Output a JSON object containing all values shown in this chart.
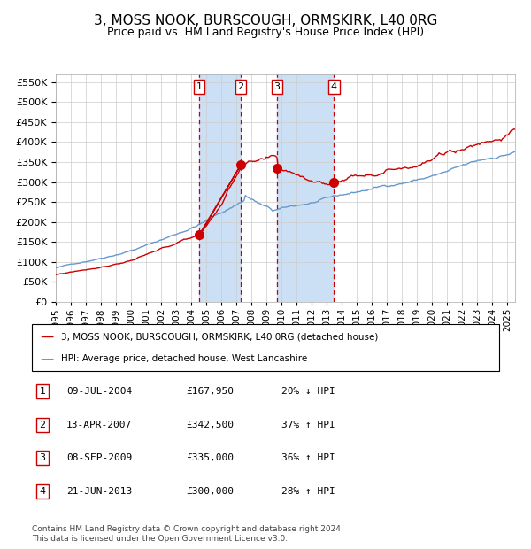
{
  "title": "3, MOSS NOOK, BURSCOUGH, ORMSKIRK, L40 0RG",
  "subtitle": "Price paid vs. HM Land Registry's House Price Index (HPI)",
  "title_fontsize": 11,
  "subtitle_fontsize": 9,
  "legend_line1": "3, MOSS NOOK, BURSCOUGH, ORMSKIRK, L40 0RG (detached house)",
  "legend_line2": "HPI: Average price, detached house, West Lancashire",
  "footer": "Contains HM Land Registry data © Crown copyright and database right 2024.\nThis data is licensed under the Open Government Licence v3.0.",
  "transactions": [
    {
      "num": 1,
      "date": "09-JUL-2004",
      "price": 167950,
      "hpi_rel": "20% ↓ HPI"
    },
    {
      "num": 2,
      "date": "13-APR-2007",
      "price": 342500,
      "hpi_rel": "37% ↑ HPI"
    },
    {
      "num": 3,
      "date": "08-SEP-2009",
      "price": 335000,
      "hpi_rel": "36% ↑ HPI"
    },
    {
      "num": 4,
      "date": "21-JUN-2013",
      "price": 300000,
      "hpi_rel": "28% ↑ HPI"
    }
  ],
  "transaction_dates_decimal": [
    2004.52,
    2007.28,
    2009.69,
    2013.47
  ],
  "transaction_prices": [
    167950,
    342500,
    335000,
    300000
  ],
  "hpi_color": "#6699cc",
  "price_color": "#cc0000",
  "background_color": "#ffffff",
  "grid_color": "#cccccc",
  "shade_color": "#cce0f5",
  "dashed_line_color": "#cc0000",
  "ylim": [
    0,
    570000
  ],
  "yticks": [
    0,
    50000,
    100000,
    150000,
    200000,
    250000,
    300000,
    350000,
    400000,
    450000,
    500000,
    550000
  ],
  "xlim_start": 1995.0,
  "xlim_end": 2025.5,
  "xtick_years": [
    1995,
    1996,
    1997,
    1998,
    1999,
    2000,
    2001,
    2002,
    2003,
    2004,
    2005,
    2006,
    2007,
    2008,
    2009,
    2010,
    2011,
    2012,
    2013,
    2014,
    2015,
    2016,
    2017,
    2018,
    2019,
    2020,
    2021,
    2022,
    2023,
    2024,
    2025
  ]
}
